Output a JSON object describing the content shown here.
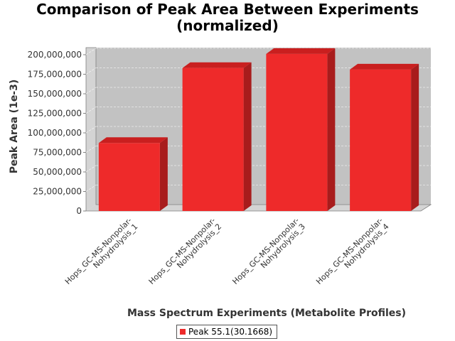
{
  "chart_data": {
    "type": "bar",
    "title": "Comparison of Peak Area Between Experiments",
    "subtitle": "(normalized)",
    "xlabel": "Mass Spectrum Experiments (Metabolite Profiles)",
    "ylabel": "Peak Area (1e-3)",
    "categories": [
      [
        "Hops_GC-MS-Nonpolar-",
        "Nohydrolysis_1"
      ],
      [
        "Hops_GC-MS-Nonpolar-",
        "Nohydrolysis_2"
      ],
      [
        "Hops_GC-MS-Nonpolar-",
        "Nohydrolysis_3"
      ],
      [
        "Hops_GC-MS-Nonpolar-",
        "Nohydrolysis_4"
      ]
    ],
    "series": [
      {
        "name": "Peak 55.1(30.1668)",
        "values": [
          87000000,
          183000000,
          201000000,
          181000000
        ]
      }
    ],
    "ylim": [
      0,
      200000000
    ],
    "yticks": [
      "0",
      "25,000,000",
      "50,000,000",
      "75,000,000",
      "100,000,000",
      "125,000,000",
      "150,000,000",
      "175,000,000",
      "200,000,000"
    ],
    "grid": true,
    "legend_position": "bottom",
    "colors": {
      "bar_front": "#ee2a2a",
      "bar_top": "#c91f1f",
      "bar_side": "#a81c1c",
      "plot_back": "#c2c2c2",
      "plot_wall": "#d4d4d4",
      "gridline": "#ffffff"
    }
  }
}
